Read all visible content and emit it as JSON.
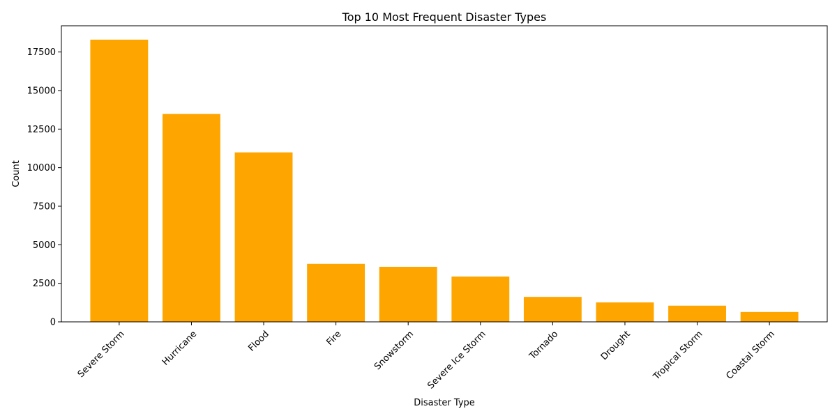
{
  "chart_data": {
    "type": "bar",
    "title": "Top 10 Most Frequent Disaster Types",
    "xlabel": "Disaster Type",
    "ylabel": "Count",
    "categories": [
      "Severe Storm",
      "Hurricane",
      "Flood",
      "Fire",
      "Snowstorm",
      "Severe Ice Storm",
      "Tornado",
      "Drought",
      "Tropical Storm",
      "Coastal Storm"
    ],
    "values": [
      18300,
      13480,
      10990,
      3760,
      3570,
      2940,
      1620,
      1260,
      1050,
      640
    ],
    "ylim": [
      0,
      19200
    ],
    "yticks": [
      0,
      2500,
      5000,
      7500,
      10000,
      12500,
      15000,
      17500
    ],
    "bar_color": "#ffa500",
    "grid": false,
    "legend": "none"
  }
}
